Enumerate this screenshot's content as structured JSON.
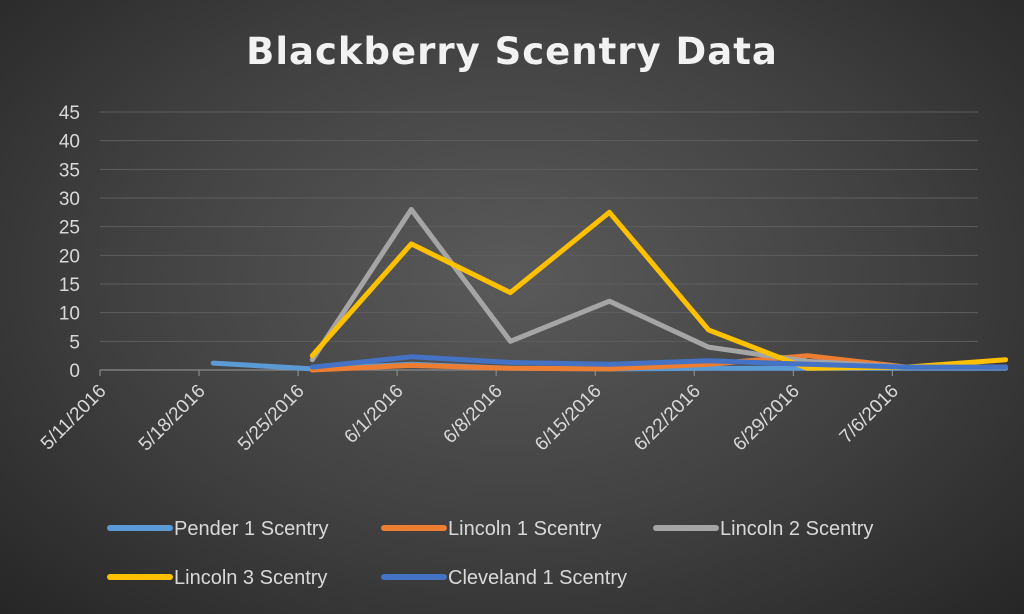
{
  "chart_data": {
    "type": "line",
    "title": "Blackberry Scentry Data",
    "xlabel": "",
    "ylabel": "",
    "ylim": [
      0,
      45
    ],
    "yticks": [
      "0",
      "5",
      "10",
      "15",
      "20",
      "25",
      "30",
      "35",
      "40",
      "45"
    ],
    "x_tick_labels": [
      "5/11/2016",
      "5/18/2016",
      "5/25/2016",
      "6/1/2016",
      "6/8/2016",
      "6/15/2016",
      "6/22/2016",
      "6/29/2016",
      "7/6/2016"
    ],
    "x": [
      "5/19/2016",
      "5/26/2016",
      "6/2/2016",
      "6/9/2016",
      "6/16/2016",
      "6/23/2016",
      "6/30/2016",
      "7/7/2016",
      "7/14/2016"
    ],
    "grid": true,
    "legend_position": "bottom",
    "series": [
      {
        "name": "Pender 1 Scentry",
        "color": "#5b9bd5",
        "values": [
          1.2,
          0.2,
          1.0,
          0.3,
          0.2,
          0.3,
          0.3,
          0.3,
          0.3
        ]
      },
      {
        "name": "Lincoln 1 Scentry",
        "color": "#ed7d31",
        "values": [
          null,
          0,
          0.8,
          0.3,
          0.2,
          1.0,
          2.5,
          0.5,
          0.5
        ]
      },
      {
        "name": "Lincoln 2 Scentry",
        "color": "#a5a5a5",
        "values": [
          null,
          1.8,
          28,
          5,
          12,
          4,
          1.5,
          0.5,
          0.5
        ]
      },
      {
        "name": "Lincoln 3 Scentry",
        "color": "#ffc000",
        "values": [
          null,
          2.5,
          22,
          13.5,
          27.5,
          7,
          0.3,
          0.5,
          1.8
        ]
      },
      {
        "name": "Cleveland 1 Scentry",
        "color": "#4472c4",
        "values": [
          null,
          0.5,
          2.3,
          1.3,
          1.0,
          1.6,
          1.0,
          0.5,
          0.5
        ]
      }
    ]
  }
}
